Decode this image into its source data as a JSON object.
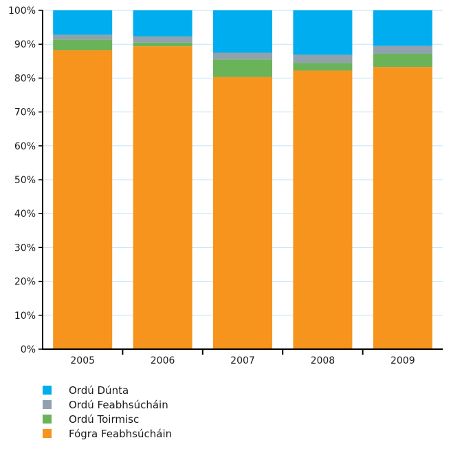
{
  "chart_data": {
    "type": "bar",
    "stacked": true,
    "categories": [
      "2005",
      "2006",
      "2007",
      "2008",
      "2009"
    ],
    "series": [
      {
        "name": "Fógra Feabhsúcháin",
        "color": "#f7941d",
        "values": [
          88.2,
          89.4,
          80.3,
          82.2,
          83.3
        ]
      },
      {
        "name": "Ordú Toirmisc",
        "color": "#6ab358",
        "values": [
          3.2,
          1.1,
          5.2,
          2.3,
          3.9
        ]
      },
      {
        "name": "Ordú Feabhsúcháin",
        "color": "#8fa2ae",
        "values": [
          1.4,
          1.8,
          2.0,
          2.4,
          2.3
        ]
      },
      {
        "name": "Ordú Dúnta",
        "color": "#00aeef",
        "values": [
          7.2,
          7.7,
          12.5,
          13.1,
          10.5
        ]
      }
    ],
    "yticks": [
      "0%",
      "10%",
      "20%",
      "30%",
      "40%",
      "50%",
      "60%",
      "70%",
      "80%",
      "90%",
      "100%"
    ],
    "ylim": [
      0,
      100
    ],
    "grid": true,
    "legend_position": "bottom-left",
    "legend_order": [
      "Ordú Dúnta",
      "Ordú Feabhsúcháin",
      "Ordú Toirmisc",
      "Fógra Feabhsúcháin"
    ],
    "title": "",
    "xlabel": "",
    "ylabel": ""
  }
}
